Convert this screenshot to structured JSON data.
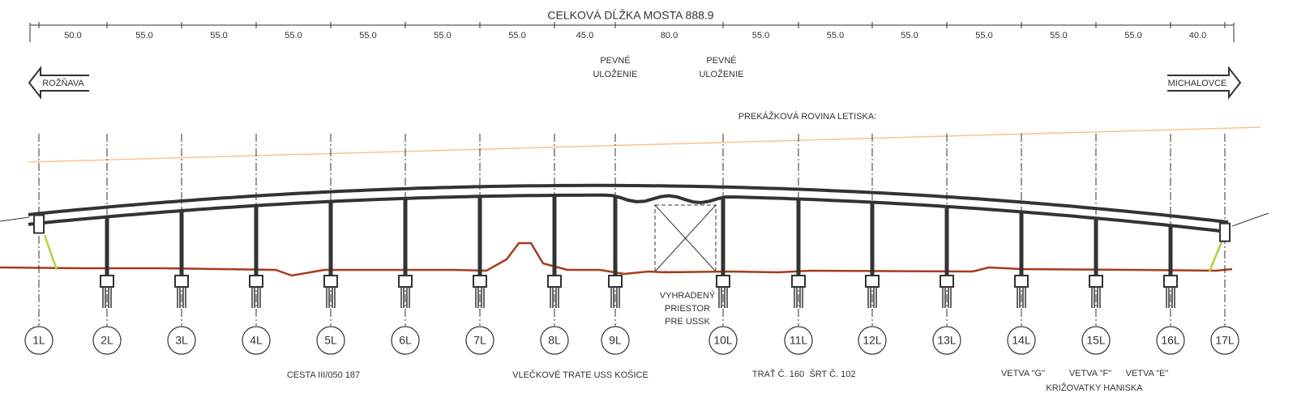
{
  "header": {
    "title": "CELKOVÁ DĹŽKA MOSTA 888.9"
  },
  "spans": [
    "50.0",
    "55.0",
    "55.0",
    "55.0",
    "55.0",
    "55.0",
    "55.0",
    "45.0",
    "80.0",
    "55.0",
    "55.0",
    "55.0",
    "55.0",
    "55.0",
    "55.0",
    "40.0"
  ],
  "directions": {
    "left": "ROŽŇAVA",
    "right": "MICHALOVCE"
  },
  "bearings": [
    {
      "lines": [
        "PEVNÉ",
        "ULOŽENIE"
      ]
    },
    {
      "lines": [
        "PEVNÉ",
        "ULOŽENIE"
      ]
    }
  ],
  "obstruction_plane": "PREKÁŽKOVÁ ROVINA LETISKA:",
  "reserved_space": {
    "lines": [
      "VYHRADENÝ",
      "PRIESTOR",
      "PRE USSK"
    ]
  },
  "piers": [
    "1L",
    "2L",
    "3L",
    "4L",
    "5L",
    "6L",
    "7L",
    "8L",
    "9L",
    "10L",
    "11L",
    "12L",
    "13L",
    "14L",
    "15L",
    "16L",
    "17L"
  ],
  "crossings": [
    "CESTA III/050 187",
    "VLEČKOVÉ TRATE USS KOŠICE",
    "TRAŤ Č. 160",
    "ŠRT Č. 102",
    "VETVA \"G\"",
    "VETVA \"F\"",
    "VETVA \"E\"",
    "KRIŽOVATKY HANISKA"
  ]
}
